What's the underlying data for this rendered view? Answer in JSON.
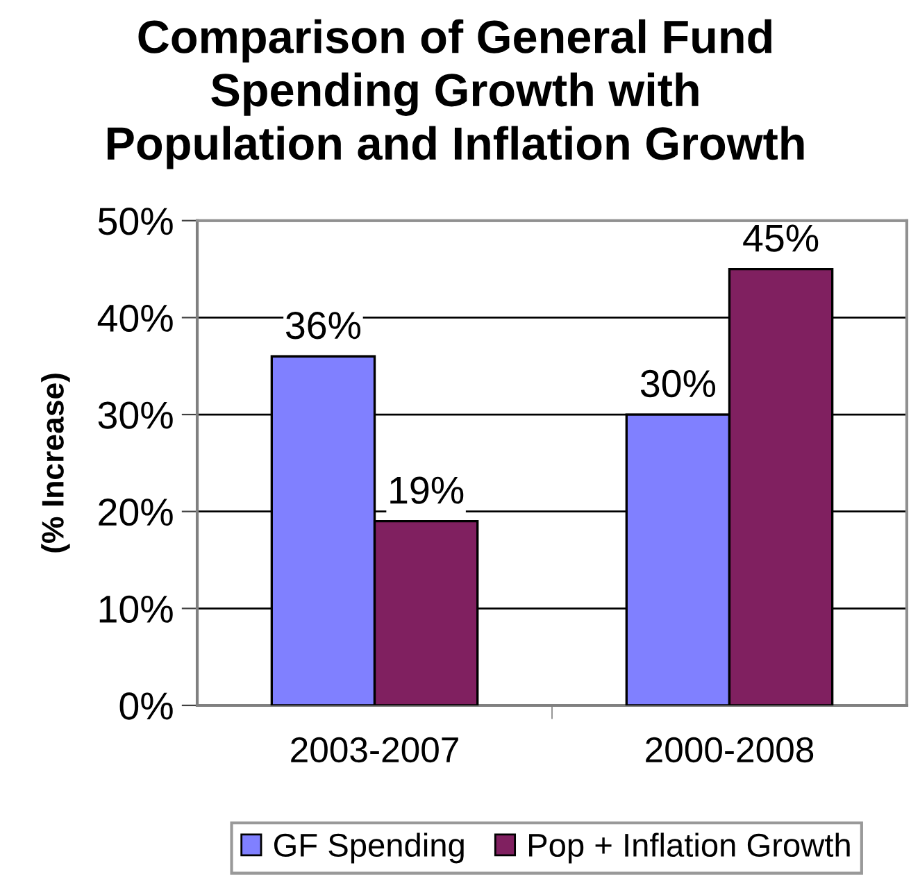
{
  "chart_data": {
    "type": "bar",
    "title": "Comparison of General Fund\nSpending Growth with\nPopulation and Inflation Growth",
    "ylabel": "(% Increase)",
    "categories": [
      "2003-2007",
      "2000-2008"
    ],
    "series": [
      {
        "name": "GF Spending",
        "color": "#8080ff",
        "values": [
          36,
          30
        ],
        "value_labels": [
          "36%",
          "30%"
        ]
      },
      {
        "name": "Pop + Inflation Growth",
        "color": "#802060",
        "values": [
          19,
          45
        ],
        "value_labels": [
          "19%",
          "45%"
        ]
      }
    ],
    "ylim": [
      0,
      50
    ],
    "yticks": [
      {
        "value": 0,
        "label": "0%"
      },
      {
        "value": 10,
        "label": "10%"
      },
      {
        "value": 20,
        "label": "20%"
      },
      {
        "value": 30,
        "label": "30%"
      },
      {
        "value": 40,
        "label": "40%"
      },
      {
        "value": 50,
        "label": "50%"
      }
    ],
    "grid": "y",
    "legend": "bottom"
  }
}
